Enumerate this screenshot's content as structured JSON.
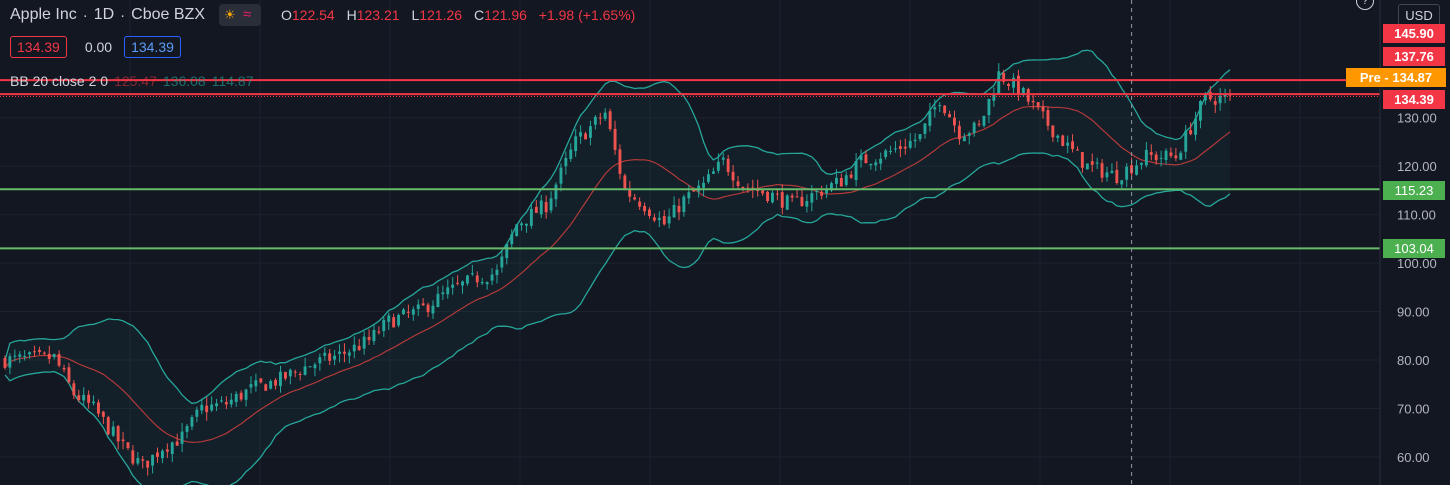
{
  "header": {
    "symbol": "Apple Inc",
    "interval": "1D",
    "exchange": "Cboe BZX",
    "sun_icon": "sun-icon",
    "waves_icon": "waves-icon",
    "ohlc": {
      "o_label": "O",
      "o_value": "122.54",
      "h_label": "H",
      "h_value": "123.21",
      "l_label": "L",
      "l_value": "121.26",
      "c_label": "C",
      "c_value": "121.96",
      "change": "+1.98 (+1.65%)"
    }
  },
  "order_row": {
    "sell_value": "134.39",
    "spread": "0.00",
    "buy_value": "134.39"
  },
  "indicator": {
    "name": "BB 20 close 2 0",
    "basis": "125.47",
    "upper": "136.08",
    "lower": "114.87"
  },
  "currency": "USD",
  "help_icon": "?",
  "colors": {
    "background": "#131722",
    "up": "#26a69a",
    "down": "#ef5350",
    "bb_band": "#26a69a",
    "bb_basis": "#b23a3a",
    "hline_red": "#f23645",
    "hline_green": "#66bb6a",
    "pre": "#ff9800"
  },
  "price_tags": {
    "t1": "145.90",
    "t2": "137.76",
    "pre_label": "Pre",
    "pre_value": "134.87",
    "t3": "134.39",
    "g1": "115.23",
    "g2": "103.04"
  },
  "chart_data": {
    "type": "candlestick",
    "y_ticks": [
      "130.00",
      "120.00",
      "110.00",
      "100.00",
      "90.00",
      "80.00",
      "70.00",
      "60.00"
    ],
    "y_tick_values": [
      130,
      120,
      110,
      100,
      90,
      80,
      70,
      60
    ],
    "ylim": [
      54.2,
      154.3
    ],
    "num_bars": 250,
    "horizontal_lines": [
      {
        "price": 137.76,
        "color": "#f23645"
      },
      {
        "price": 134.87,
        "color": "#f23645"
      },
      {
        "price": 115.23,
        "color": "#66bb6a"
      },
      {
        "price": 103.04,
        "color": "#66bb6a"
      }
    ],
    "dotted_line_price": 134.39,
    "crosshair_bar": 229,
    "trend_keypoints": [
      [
        0,
        80
      ],
      [
        10,
        80.5
      ],
      [
        14,
        73
      ],
      [
        18,
        70
      ],
      [
        24,
        62
      ],
      [
        28,
        58
      ],
      [
        32,
        62
      ],
      [
        36,
        64
      ],
      [
        40,
        70
      ],
      [
        45,
        71
      ],
      [
        50,
        74
      ],
      [
        56,
        76
      ],
      [
        62,
        79
      ],
      [
        68,
        81
      ],
      [
        74,
        84
      ],
      [
        78,
        88
      ],
      [
        84,
        90
      ],
      [
        90,
        94
      ],
      [
        96,
        97
      ],
      [
        100,
        98
      ],
      [
        104,
        108
      ],
      [
        110,
        112
      ],
      [
        116,
        125
      ],
      [
        122,
        131
      ],
      [
        126,
        115
      ],
      [
        130,
        112
      ],
      [
        134,
        108
      ],
      [
        138,
        113
      ],
      [
        142,
        116
      ],
      [
        146,
        121
      ],
      [
        150,
        116
      ],
      [
        156,
        114
      ],
      [
        160,
        112
      ],
      [
        164,
        114
      ],
      [
        170,
        117
      ],
      [
        174,
        121
      ],
      [
        180,
        123
      ],
      [
        186,
        126
      ],
      [
        190,
        134
      ],
      [
        194,
        127
      ],
      [
        198,
        128
      ],
      [
        202,
        139
      ],
      [
        206,
        136
      ],
      [
        210,
        131
      ],
      [
        216,
        124
      ],
      [
        220,
        120
      ],
      [
        226,
        118
      ],
      [
        232,
        122
      ],
      [
        238,
        122
      ],
      [
        244,
        134
      ],
      [
        250,
        134
      ]
    ],
    "legend": "BB 20 close 2 0"
  }
}
